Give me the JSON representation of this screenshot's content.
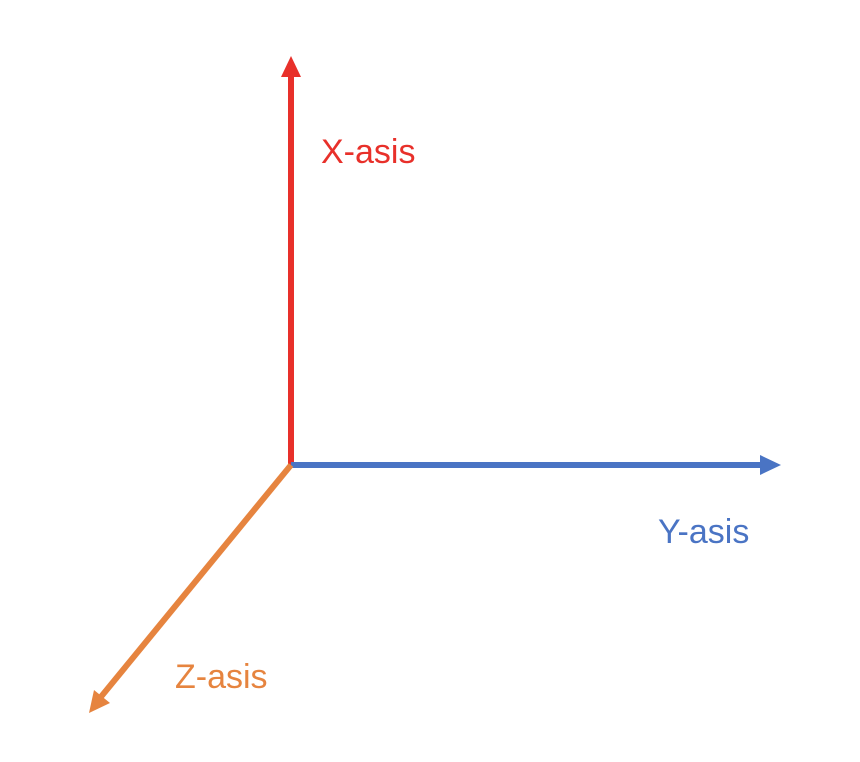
{
  "axes": {
    "x": {
      "label": "X-asis",
      "color": "#e8302a"
    },
    "y": {
      "label": "Y-asis",
      "color": "#4a74c4"
    },
    "z": {
      "label": "Z-asis",
      "color": "#e6843f"
    }
  }
}
